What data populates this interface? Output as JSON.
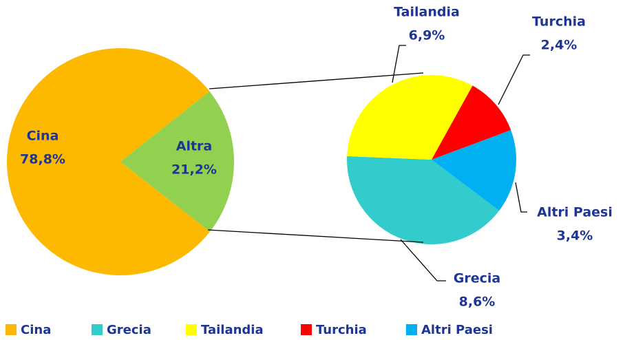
{
  "chart_data": {
    "type": "pie",
    "categories": [
      "Cina",
      "Altra"
    ],
    "values": [
      78.8,
      21.2
    ],
    "value_labels": [
      "78,8%",
      "21,2%"
    ],
    "colors": [
      "#fcb900",
      "#92d050"
    ],
    "detail": {
      "categories": [
        "Grecia",
        "Tailandia",
        "Turchia",
        "Altri Paesi"
      ],
      "values": [
        8.6,
        6.9,
        2.4,
        3.4
      ],
      "value_labels": [
        "8,6%",
        "6,9%",
        "2,4%",
        "3,4%"
      ],
      "colors": [
        "#33cccc",
        "#ffff00",
        "#ff0000",
        "#00b0f0"
      ]
    }
  }
}
